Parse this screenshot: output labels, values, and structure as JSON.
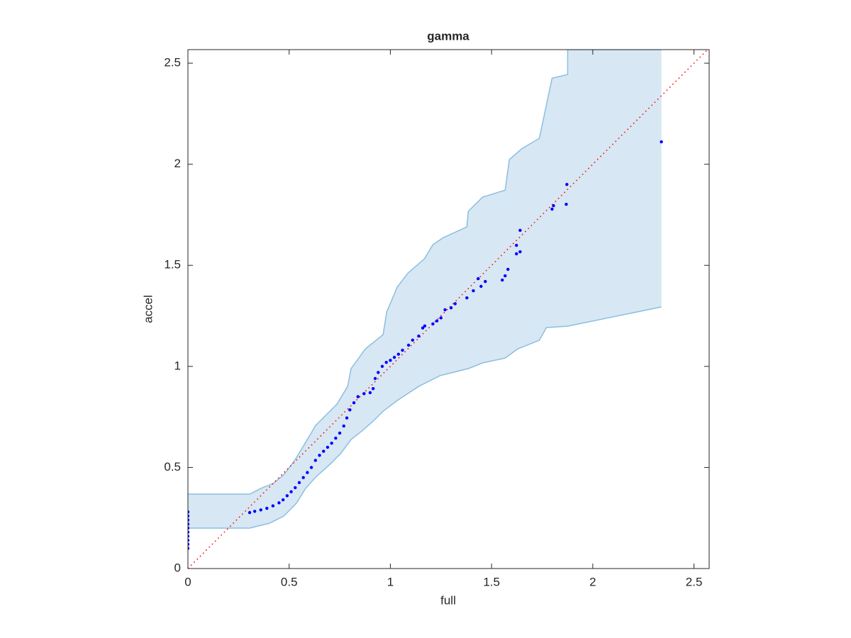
{
  "chart_data": {
    "type": "scatter",
    "title": "gamma",
    "x_label": "full",
    "y_label": "accel",
    "xlim": [
      0,
      2.575
    ],
    "ylim": [
      0,
      2.567
    ],
    "xticks": [
      0,
      0.5,
      1,
      1.5,
      2,
      2.5
    ],
    "yticks": [
      0,
      0.5,
      1,
      1.5,
      2,
      2.5
    ],
    "box": true,
    "series": [
      {
        "color": "#0000ff",
        "x": [
          0,
          0,
          0,
          0,
          0,
          0,
          0,
          0,
          0,
          0,
          0.305,
          0.33,
          0.36,
          0.39,
          0.42,
          0.45,
          0.47,
          0.49,
          0.51,
          0.53,
          0.55,
          0.57,
          0.59,
          0.61,
          0.63,
          0.65,
          0.67,
          0.69,
          0.71,
          0.73,
          0.75,
          0.77,
          0.785,
          0.8,
          0.82,
          0.84,
          0.87,
          0.9,
          0.915,
          0.925,
          0.94,
          0.96,
          0.98,
          1.0,
          1.02,
          1.04,
          1.06,
          1.09,
          1.11,
          1.14,
          1.16,
          1.17,
          1.21,
          1.23,
          1.25,
          1.27,
          1.3,
          1.32,
          1.378,
          1.41,
          1.448,
          1.469,
          1.434,
          1.553,
          1.567,
          1.581,
          1.623,
          1.641,
          1.623,
          1.641,
          1.799,
          1.806,
          1.869,
          1.872,
          2.339
        ],
        "values": [
          0.1,
          0.12,
          0.14,
          0.16,
          0.18,
          0.2,
          0.22,
          0.24,
          0.26,
          0.28,
          0.277,
          0.283,
          0.29,
          0.298,
          0.31,
          0.325,
          0.34,
          0.36,
          0.38,
          0.4,
          0.425,
          0.45,
          0.475,
          0.5,
          0.535,
          0.56,
          0.58,
          0.6,
          0.62,
          0.645,
          0.67,
          0.705,
          0.745,
          0.785,
          0.82,
          0.85,
          0.865,
          0.87,
          0.89,
          0.94,
          0.97,
          1.0,
          1.02,
          1.03,
          1.045,
          1.06,
          1.08,
          1.105,
          1.13,
          1.15,
          1.19,
          1.2,
          1.21,
          1.225,
          1.24,
          1.28,
          1.29,
          1.31,
          1.339,
          1.374,
          1.396,
          1.42,
          1.434,
          1.427,
          1.448,
          1.48,
          1.557,
          1.567,
          1.599,
          1.673,
          1.778,
          1.795,
          1.802,
          1.9,
          2.111
        ]
      }
    ],
    "band": {
      "fill": "#d7e7f4",
      "edge_color": "#8cbfdf",
      "upper": {
        "x": [
          0,
          0.305,
          0.368,
          0.42,
          0.473,
          0.526,
          0.579,
          0.631,
          0.684,
          0.736,
          0.789,
          0.806,
          0.877,
          0.964,
          0.982,
          1.034,
          1.087,
          1.168,
          1.21,
          1.262,
          1.378,
          1.385,
          1.455,
          1.567,
          1.588,
          1.648,
          1.736,
          1.799,
          1.876,
          1.876,
          2.339
        ],
        "values": [
          0.368,
          0.368,
          0.4,
          0.42,
          0.463,
          0.533,
          0.62,
          0.708,
          0.761,
          0.813,
          0.901,
          0.989,
          1.087,
          1.157,
          1.269,
          1.392,
          1.462,
          1.532,
          1.602,
          1.637,
          1.69,
          1.767,
          1.837,
          1.872,
          2.023,
          2.076,
          2.128,
          2.426,
          2.444,
          2.567,
          2.567
        ]
      },
      "lower": {
        "x": [
          0,
          0.305,
          0.403,
          0.473,
          0.536,
          0.579,
          0.631,
          0.701,
          0.754,
          0.806,
          0.859,
          0.912,
          0.964,
          1.034,
          1.14,
          1.245,
          1.385,
          1.455,
          1.567,
          1.63,
          1.736,
          1.771,
          1.876,
          2.339
        ],
        "values": [
          0.2,
          0.2,
          0.224,
          0.259,
          0.323,
          0.393,
          0.452,
          0.515,
          0.568,
          0.638,
          0.68,
          0.726,
          0.778,
          0.831,
          0.901,
          0.954,
          0.989,
          1.017,
          1.041,
          1.087,
          1.129,
          1.192,
          1.199,
          1.294
        ]
      }
    },
    "reference_line": {
      "color": "#ff0000",
      "x": [
        0,
        2.575
      ],
      "values": [
        0,
        2.575
      ]
    }
  }
}
